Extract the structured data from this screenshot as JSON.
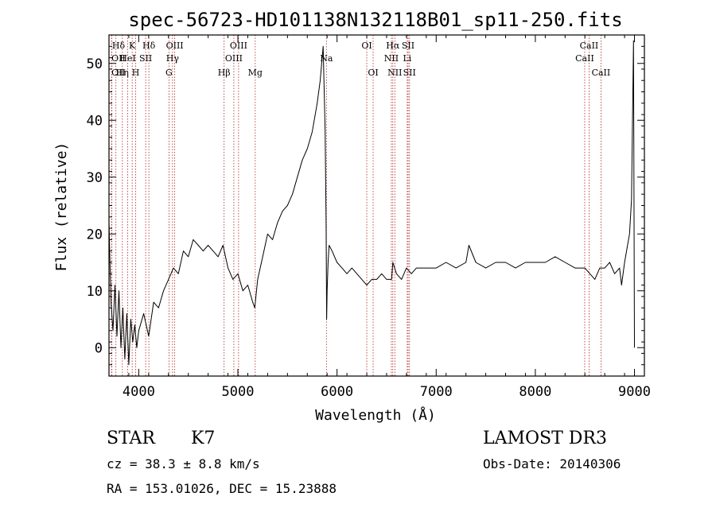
{
  "chart_data": {
    "type": "line",
    "title": "spec-56723-HD101138N132118B01_sp11-250.fits",
    "xlabel": "Wavelength (Å)",
    "ylabel": "Flux (relative)",
    "xlim": [
      3700,
      9100
    ],
    "ylim": [
      -5,
      55
    ],
    "xticks": [
      4000,
      5000,
      6000,
      7000,
      8000,
      9000
    ],
    "yticks": [
      0,
      10,
      20,
      30,
      40,
      50
    ],
    "series": [
      {
        "x": [
          3700,
          3720,
          3740,
          3760,
          3780,
          3800,
          3820,
          3840,
          3860,
          3880,
          3900,
          3920,
          3940,
          3960,
          3980,
          4000,
          4050,
          4100,
          4150,
          4200,
          4250,
          4300,
          4350,
          4400,
          4450,
          4500,
          4550,
          4600,
          4650,
          4700,
          4750,
          4800,
          4850,
          4900,
          4950,
          5000,
          5050,
          5100,
          5150,
          5170,
          5200,
          5250,
          5300,
          5350,
          5400,
          5450,
          5500,
          5550,
          5600,
          5650,
          5700,
          5750,
          5800,
          5830,
          5860,
          5880,
          5890,
          5895,
          5900,
          5910,
          5920,
          5950,
          6000,
          6050,
          6100,
          6150,
          6200,
          6250,
          6300,
          6350,
          6400,
          6450,
          6500,
          6550,
          6563,
          6600,
          6650,
          6700,
          6750,
          6800,
          6900,
          7000,
          7100,
          7200,
          7300,
          7330,
          7400,
          7500,
          7600,
          7700,
          7800,
          7900,
          8000,
          8100,
          8200,
          8300,
          8400,
          8500,
          8550,
          8600,
          8650,
          8700,
          8750,
          8800,
          8850,
          8870,
          8900,
          8930,
          8950,
          8970,
          8990,
          9000
        ],
        "y": [
          22,
          8,
          3,
          11,
          2,
          10,
          0,
          7,
          -2,
          6,
          -3,
          5,
          1,
          4,
          0,
          3,
          6,
          2,
          8,
          7,
          10,
          12,
          14,
          13,
          17,
          16,
          19,
          18,
          17,
          18,
          17,
          16,
          18,
          14,
          12,
          13,
          10,
          11,
          8,
          7,
          12,
          16,
          20,
          19,
          22,
          24,
          25,
          27,
          30,
          33,
          35,
          38,
          43,
          47,
          53,
          38,
          22,
          5,
          10,
          15,
          18,
          17,
          15,
          14,
          13,
          14,
          13,
          12,
          11,
          12,
          12,
          13,
          12,
          12,
          15,
          13,
          12,
          14,
          13,
          14,
          14,
          14,
          15,
          14,
          15,
          18,
          15,
          14,
          15,
          15,
          14,
          15,
          15,
          15,
          16,
          15,
          14,
          14,
          13,
          12,
          14,
          14,
          15,
          13,
          14,
          11,
          15,
          18,
          20,
          26,
          54,
          0
        ]
      }
    ],
    "spectral_lines": [
      {
        "label": "Hδ",
        "x": 3770,
        "row": 0
      },
      {
        "label": "OII",
        "x": 3727,
        "row": 1
      },
      {
        "label": "OII",
        "x": 3729,
        "row": 2
      },
      {
        "label": "HeI",
        "x": 3889,
        "row": 1
      },
      {
        "label": "Hη",
        "x": 3835,
        "row": 2
      },
      {
        "label": "K",
        "x": 3934,
        "row": 0
      },
      {
        "label": "SII",
        "x": 4070,
        "row": 1
      },
      {
        "label": "H",
        "x": 3969,
        "row": 2
      },
      {
        "label": "Hδ",
        "x": 4102,
        "row": 0
      },
      {
        "label": "OIII",
        "x": 4363,
        "row": 0
      },
      {
        "label": "Hγ",
        "x": 4341,
        "row": 1
      },
      {
        "label": "G",
        "x": 4305,
        "row": 2
      },
      {
        "label": "OIII",
        "x": 5007,
        "row": 0
      },
      {
        "label": "OIII",
        "x": 4959,
        "row": 1
      },
      {
        "label": "Hβ",
        "x": 4861,
        "row": 2
      },
      {
        "label": "Mg",
        "x": 5175,
        "row": 2
      },
      {
        "label": "Na",
        "x": 5893,
        "row": 1
      },
      {
        "label": "OI",
        "x": 6300,
        "row": 0
      },
      {
        "label": "OI",
        "x": 6364,
        "row": 2
      },
      {
        "label": "Hα",
        "x": 6563,
        "row": 0
      },
      {
        "label": "NII",
        "x": 6548,
        "row": 1
      },
      {
        "label": "NII",
        "x": 6583,
        "row": 2
      },
      {
        "label": "SII",
        "x": 6717,
        "row": 0
      },
      {
        "label": "Li",
        "x": 6708,
        "row": 1
      },
      {
        "label": "SII",
        "x": 6731,
        "row": 2
      },
      {
        "label": "CaII",
        "x": 8542,
        "row": 0
      },
      {
        "label": "CaII",
        "x": 8498,
        "row": 1
      },
      {
        "label": "CaII",
        "x": 8662,
        "row": 2
      }
    ],
    "line_color": "#000000",
    "marker_color": "#b22222",
    "grid": false,
    "legend": "none"
  },
  "info": {
    "class_label": "STAR",
    "subclass": "K7",
    "survey": "LAMOST DR3",
    "cz": "cz = 38.3 ± 8.8 km/s",
    "obs_date": "Obs-Date: 20140306",
    "coords": "RA = 153.01026, DEC =  15.23888"
  }
}
